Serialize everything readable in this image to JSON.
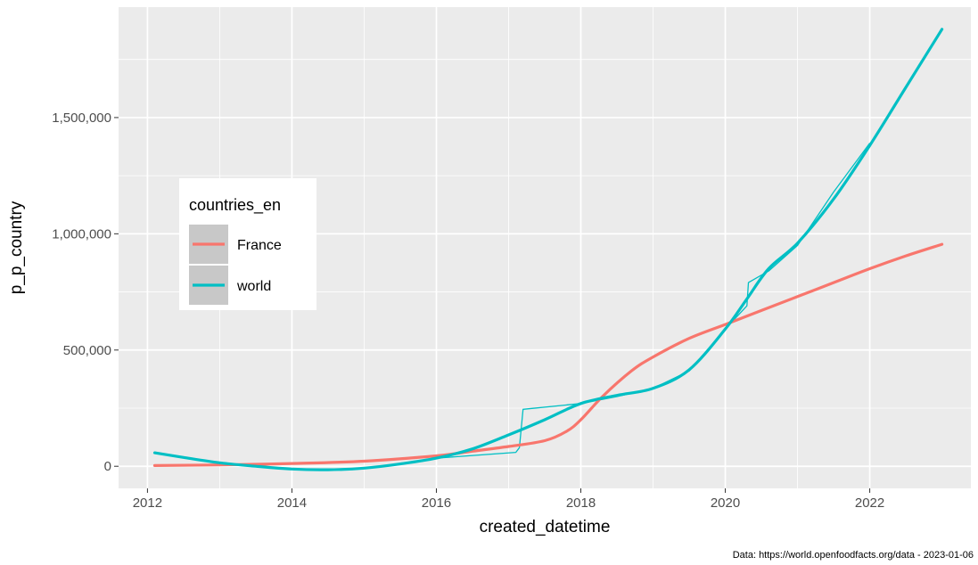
{
  "chart_data": {
    "type": "line",
    "xlabel": "created_datetime",
    "ylabel": "p_p_country",
    "caption": "Data: https://world.openfoodfacts.org/data -  2023-01-06",
    "legend": {
      "title": "countries_en",
      "placement": "left"
    },
    "grid": true,
    "background": "#ebebeb",
    "x_ticks": [
      2012,
      2014,
      2016,
      2018,
      2020,
      2022
    ],
    "x_tick_labels": [
      "2012",
      "2014",
      "2016",
      "2018",
      "2020",
      "2022"
    ],
    "y_ticks": [
      0,
      500000,
      1000000,
      1500000
    ],
    "y_tick_labels": [
      "0",
      "500,000",
      "1,000,000",
      "1,500,000"
    ],
    "xlim": [
      2011.6,
      2023.4
    ],
    "ylim": [
      -95000,
      1975000
    ],
    "series": [
      {
        "name": "France",
        "color": "#F8766D",
        "smooth": {
          "x": [
            2012.1,
            2013,
            2014,
            2015,
            2016,
            2016.5,
            2017,
            2017.5,
            2017.8,
            2018,
            2018.3,
            2018.7,
            2019,
            2019.5,
            2020,
            2020.5,
            2021,
            2021.5,
            2022,
            2022.5,
            2023
          ],
          "y": [
            3000,
            6000,
            12000,
            22000,
            45000,
            65000,
            85000,
            110000,
            150000,
            200000,
            300000,
            410000,
            470000,
            550000,
            610000,
            670000,
            730000,
            790000,
            850000,
            905000,
            955000
          ]
        },
        "raw": {
          "x": [],
          "y": []
        }
      },
      {
        "name": "world",
        "color": "#00BFC4",
        "smooth": {
          "x": [
            2012.1,
            2012.5,
            2013,
            2013.5,
            2014,
            2014.5,
            2015,
            2015.5,
            2016,
            2016.5,
            2017,
            2017.5,
            2018,
            2018.5,
            2019,
            2019.5,
            2020,
            2020.3,
            2020.6,
            2021,
            2021.5,
            2022,
            2022.5,
            2023
          ],
          "y": [
            58000,
            38000,
            15000,
            0,
            -12000,
            -15000,
            -8000,
            10000,
            35000,
            75000,
            135000,
            200000,
            270000,
            305000,
            335000,
            415000,
            590000,
            720000,
            850000,
            960000,
            1150000,
            1380000,
            1630000,
            1880000
          ]
        },
        "raw": {
          "x": [
            2016,
            2017.1,
            2017.15,
            2017.2,
            2018,
            2018.5,
            2019,
            2019.5,
            2020,
            2020.3,
            2020.32,
            2020.6,
            2021,
            2021.5,
            2022
          ],
          "y": [
            35000,
            60000,
            80000,
            245000,
            270000,
            300000,
            335000,
            410000,
            590000,
            690000,
            790000,
            840000,
            950000,
            1180000,
            1390000
          ]
        }
      }
    ]
  }
}
